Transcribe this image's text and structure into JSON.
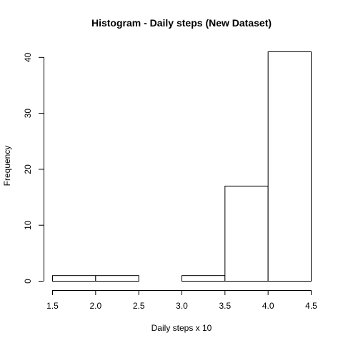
{
  "chart_data": {
    "type": "bar",
    "title": "Histogram - Daily steps (New Dataset)",
    "xlabel": "Daily steps x 10",
    "ylabel": "Frequency",
    "bins": [
      {
        "start": 1.5,
        "end": 2.0,
        "count": 1
      },
      {
        "start": 2.0,
        "end": 2.5,
        "count": 1
      },
      {
        "start": 2.5,
        "end": 3.0,
        "count": 0
      },
      {
        "start": 3.0,
        "end": 3.5,
        "count": 1
      },
      {
        "start": 3.5,
        "end": 4.0,
        "count": 17
      },
      {
        "start": 4.0,
        "end": 4.5,
        "count": 41
      }
    ],
    "xlim": [
      1.5,
      4.5
    ],
    "ylim": [
      0,
      41
    ],
    "xticks": [
      "1.5",
      "2.0",
      "2.5",
      "3.0",
      "3.5",
      "4.0",
      "4.5"
    ],
    "yticks": [
      "0",
      "10",
      "20",
      "30",
      "40"
    ],
    "grid": false,
    "colors": {
      "bar_fill": "#ffffff",
      "stroke": "#000000",
      "background": "#ffffff"
    }
  }
}
